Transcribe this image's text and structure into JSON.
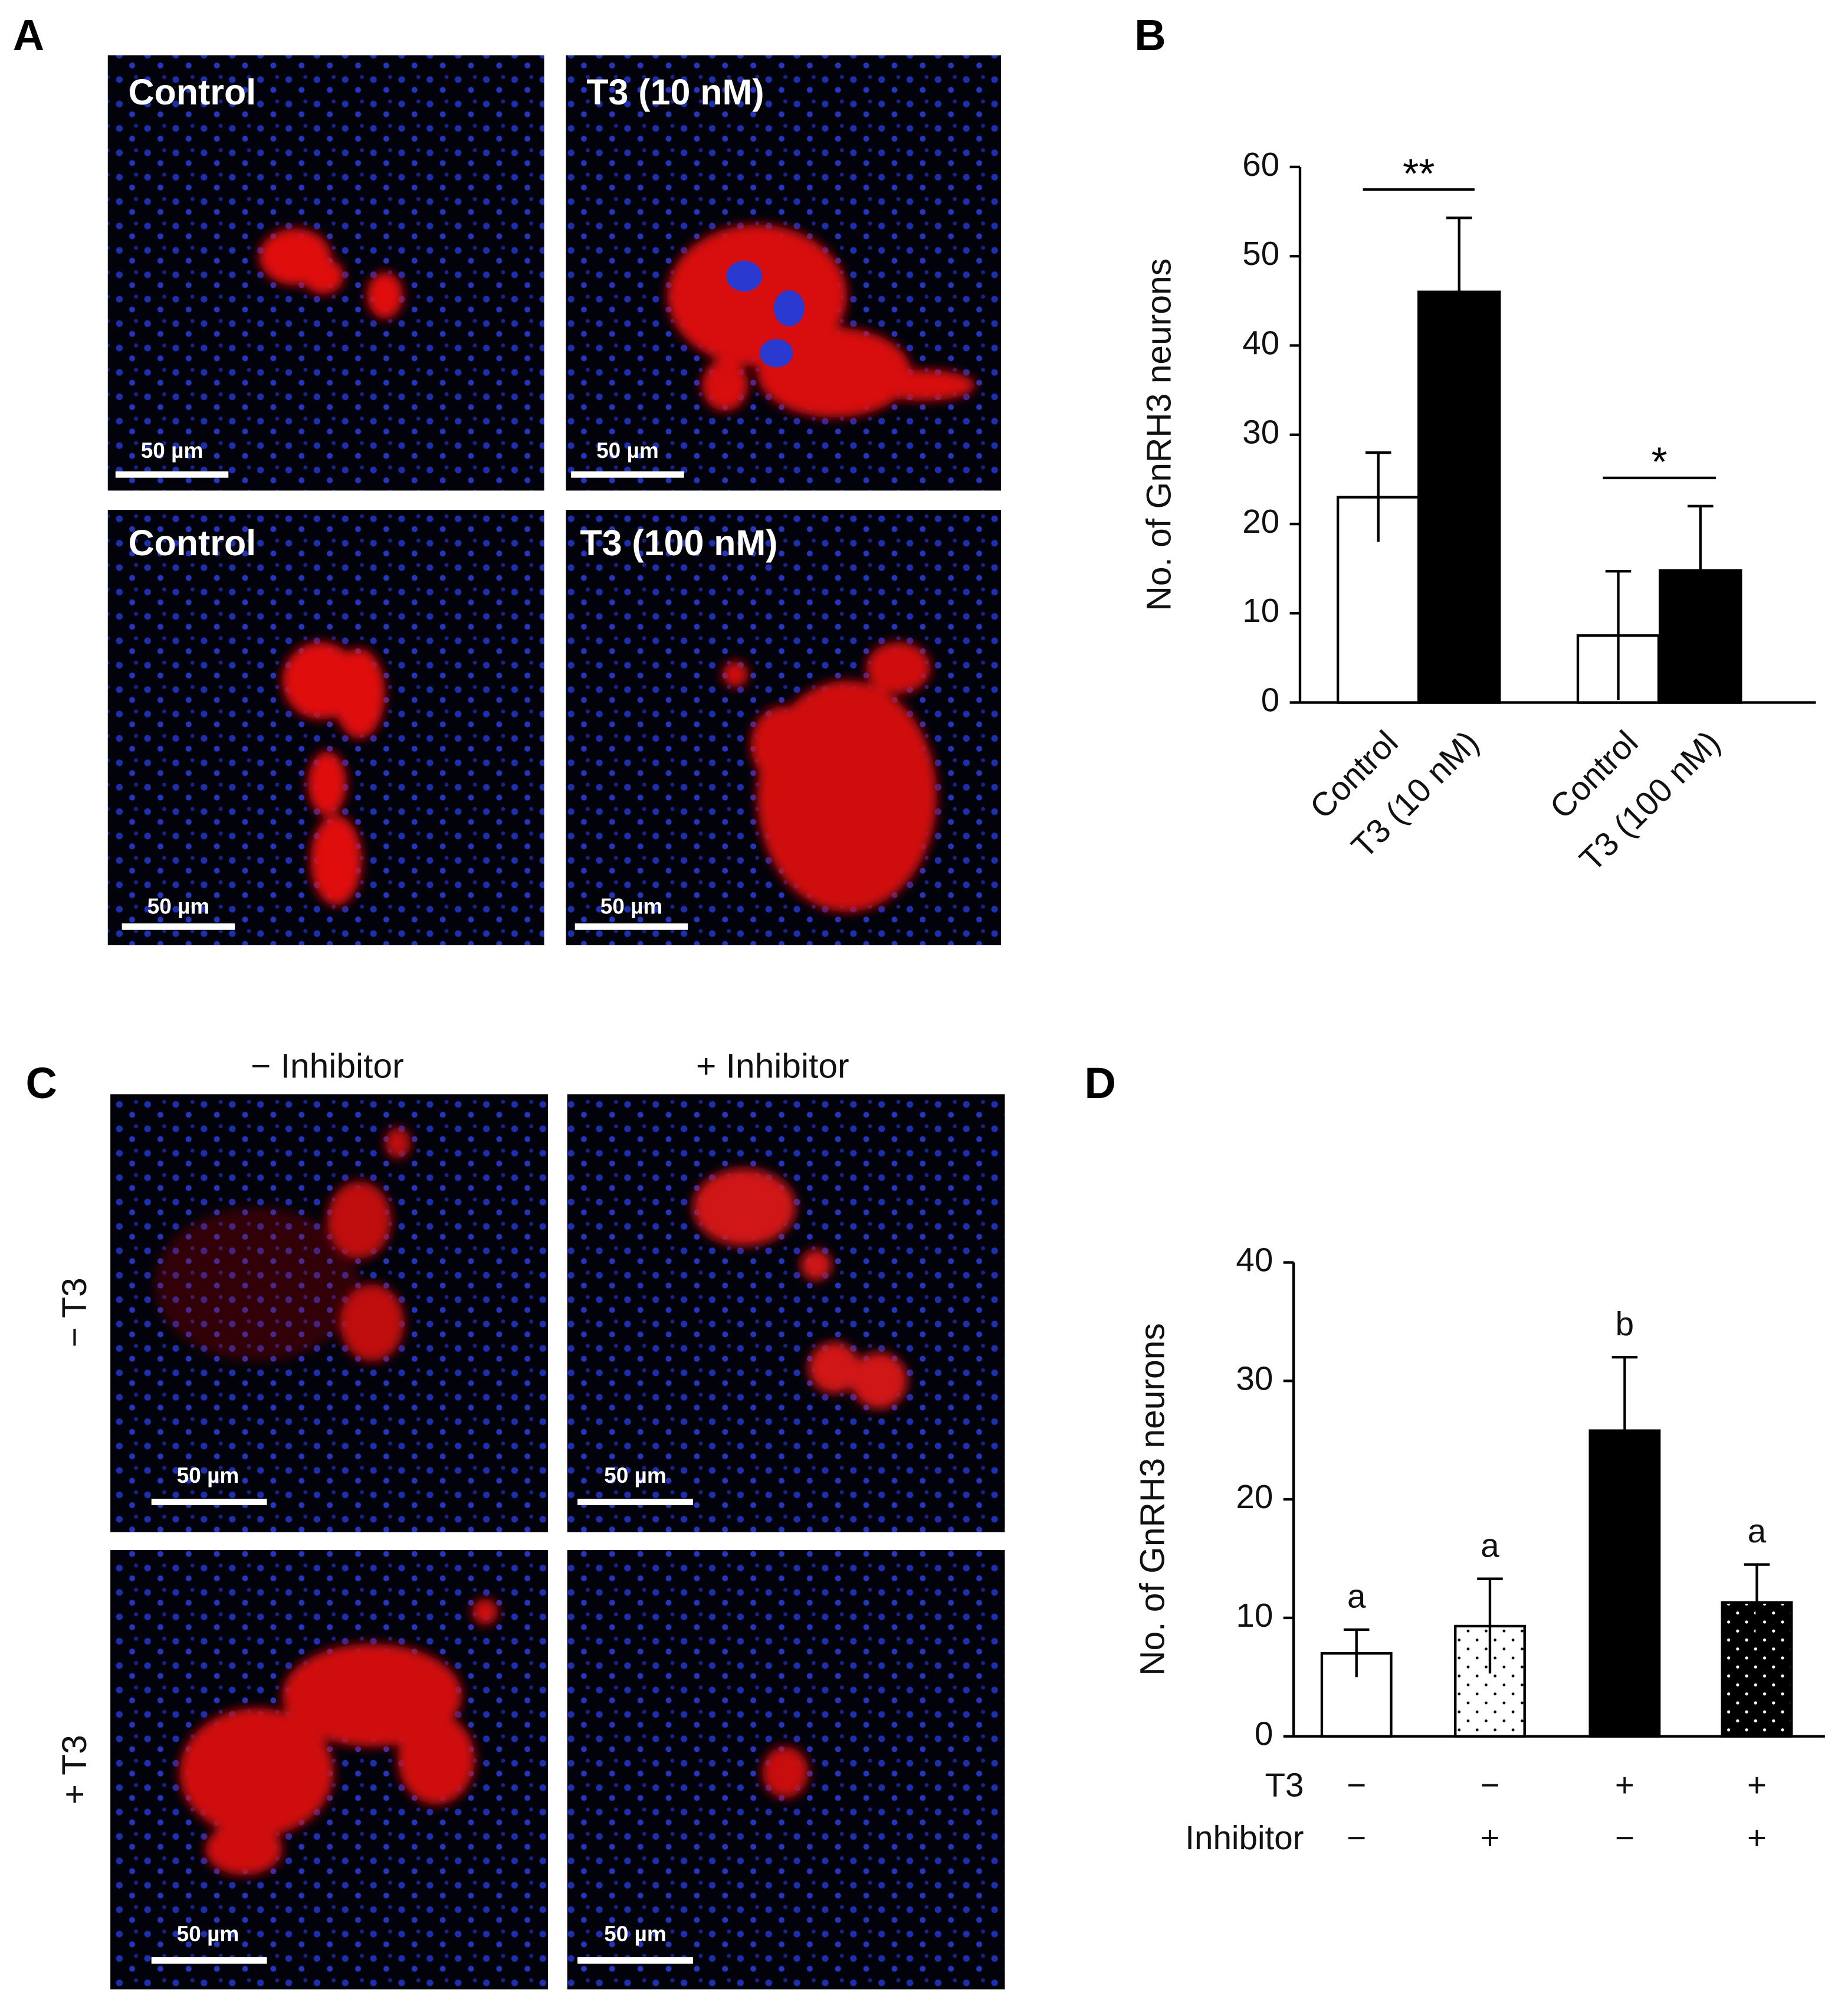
{
  "panel_labels": [
    "A",
    "B",
    "C",
    "D"
  ],
  "panel_a": {
    "images": [
      {
        "label": "Control",
        "scale_bar": "50 µm"
      },
      {
        "label": "T3 (10 nM)",
        "scale_bar": "50 µm"
      },
      {
        "label": "Control",
        "scale_bar": "50 µm"
      },
      {
        "label": "T3 (100 nM)",
        "scale_bar": "50 µm"
      }
    ]
  },
  "panel_c": {
    "column_labels": [
      "− Inhibitor",
      "+ Inhibitor"
    ],
    "row_labels": [
      "− T3",
      "+ T3"
    ],
    "scale_bars": [
      "50 µm",
      "50 µm",
      "50 µm",
      "50 µm"
    ]
  },
  "chart_data": [
    {
      "type": "bar",
      "ylabel": "No. of GnRH3 neurons",
      "categories": [
        "Control",
        "T3 (10 nM)",
        "Control",
        "T3 (100 nM)"
      ],
      "values": [
        23,
        46,
        7.5,
        14.8
      ],
      "errors": [
        5,
        8.3,
        7.2,
        7.2
      ],
      "colors": [
        "#ffffff",
        "#000000",
        "#ffffff",
        "#000000"
      ],
      "ylim": [
        0,
        60
      ],
      "yticks": [
        0,
        10,
        20,
        30,
        40,
        50,
        60
      ],
      "annotations": [
        {
          "text": "**",
          "from": 0,
          "to": 1
        },
        {
          "text": "*",
          "from": 2,
          "to": 3
        }
      ]
    },
    {
      "type": "bar",
      "ylabel": "No. of GnRH3 neurons",
      "condition_rows": [
        {
          "label": "T3",
          "values": [
            "−",
            "−",
            "+",
            "+"
          ]
        },
        {
          "label": "Inhibitor",
          "values": [
            "−",
            "+",
            "−",
            "+"
          ]
        }
      ],
      "values": [
        7,
        9.3,
        25.8,
        11.3
      ],
      "errors": [
        2,
        4,
        6.2,
        3.2
      ],
      "colors": [
        "#ffffff",
        "#ffffff",
        "#000000",
        "#000000"
      ],
      "dotted": [
        false,
        true,
        false,
        true
      ],
      "letters": [
        "a",
        "a",
        "b",
        "a"
      ],
      "ylim": [
        0,
        40
      ],
      "yticks": [
        0,
        10,
        20,
        30,
        40
      ]
    }
  ]
}
